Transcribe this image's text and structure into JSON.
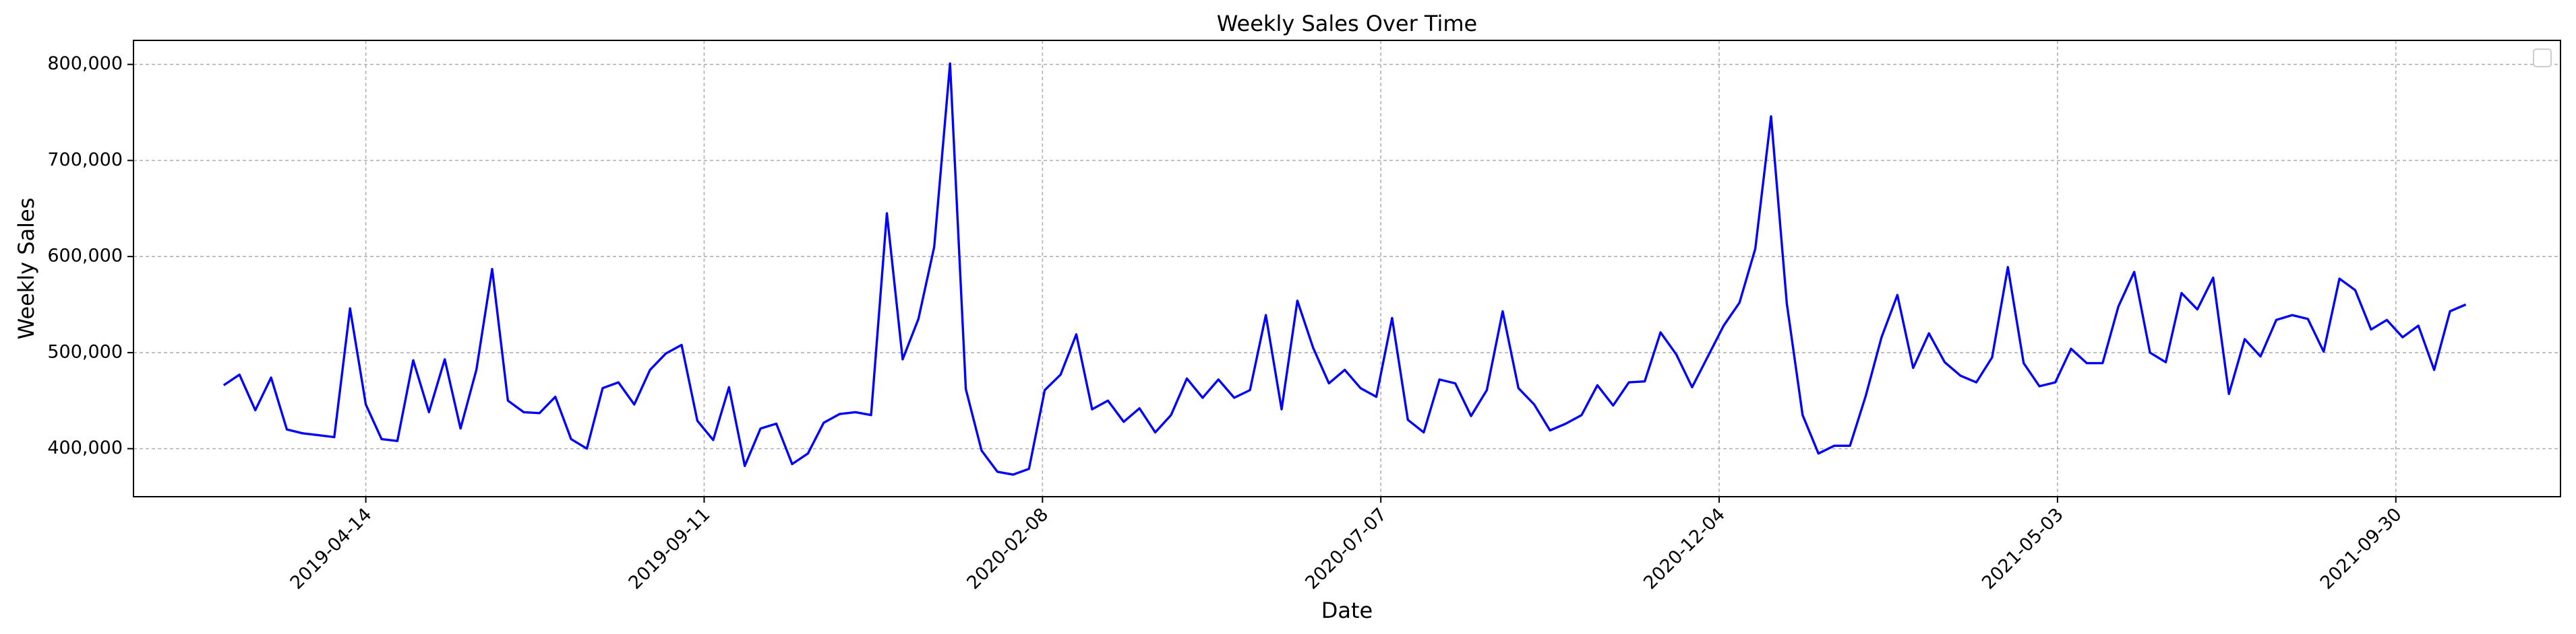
{
  "chart_data": {
    "type": "line",
    "title": "Weekly Sales Over Time",
    "xlabel": "Date",
    "ylabel": "Weekly Sales",
    "grid": true,
    "legend": "top-right, empty box",
    "series_color": "#0000ff",
    "xlim": [
      "2019-01-01",
      "2021-12-12"
    ],
    "ylim": [
      350000,
      825000
    ],
    "x_ticks": [
      "2019-04-14",
      "2019-09-11",
      "2020-02-08",
      "2020-07-07",
      "2020-12-04",
      "2021-05-03",
      "2021-09-30"
    ],
    "y_ticks": [
      400000,
      500000,
      600000,
      700000,
      800000
    ],
    "y_tick_labels": [
      "400,000",
      "500,000",
      "600,000",
      "700,000",
      "800,000"
    ],
    "series": [
      {
        "x": [
          "2019-02-10",
          "2019-02-17",
          "2019-02-24",
          "2019-03-03",
          "2019-03-10",
          "2019-03-17",
          "2019-03-24",
          "2019-03-31",
          "2019-04-07",
          "2019-04-14",
          "2019-04-21",
          "2019-04-28",
          "2019-05-05",
          "2019-05-12",
          "2019-05-19",
          "2019-05-26",
          "2019-06-02",
          "2019-06-09",
          "2019-06-16",
          "2019-06-23",
          "2019-06-30",
          "2019-07-07",
          "2019-07-14",
          "2019-07-21",
          "2019-07-28",
          "2019-08-04",
          "2019-08-11",
          "2019-08-18",
          "2019-08-25",
          "2019-09-01",
          "2019-09-08",
          "2019-09-15",
          "2019-09-22",
          "2019-09-29",
          "2019-10-06",
          "2019-10-13",
          "2019-10-20",
          "2019-10-27",
          "2019-11-03",
          "2019-11-10",
          "2019-11-17",
          "2019-11-24",
          "2019-12-01",
          "2019-12-08",
          "2019-12-15",
          "2019-12-22",
          "2019-12-29",
          "2020-01-05",
          "2020-01-12",
          "2020-01-19",
          "2020-01-26",
          "2020-02-02",
          "2020-02-09",
          "2020-02-16",
          "2020-02-23",
          "2020-03-01",
          "2020-03-08",
          "2020-03-15",
          "2020-03-22",
          "2020-03-29",
          "2020-04-05",
          "2020-04-12",
          "2020-04-19",
          "2020-04-26",
          "2020-05-03",
          "2020-05-10",
          "2020-05-17",
          "2020-05-24",
          "2020-05-31",
          "2020-06-07",
          "2020-06-14",
          "2020-06-21",
          "2020-06-28",
          "2020-07-05",
          "2020-07-12",
          "2020-07-19",
          "2020-07-26",
          "2020-08-02",
          "2020-08-09",
          "2020-08-16",
          "2020-08-23",
          "2020-08-30",
          "2020-09-06",
          "2020-09-13",
          "2020-09-20",
          "2020-09-27",
          "2020-10-04",
          "2020-10-11",
          "2020-10-18",
          "2020-10-25",
          "2020-11-01",
          "2020-11-08",
          "2020-11-15",
          "2020-11-22",
          "2020-11-29",
          "2020-12-06",
          "2020-12-13",
          "2020-12-20",
          "2020-12-27",
          "2021-01-03",
          "2021-01-10",
          "2021-01-17",
          "2021-01-24",
          "2021-01-31",
          "2021-02-07",
          "2021-02-14",
          "2021-02-21",
          "2021-02-28",
          "2021-03-07",
          "2021-03-14",
          "2021-03-21",
          "2021-03-28",
          "2021-04-04",
          "2021-04-11",
          "2021-04-18",
          "2021-04-25",
          "2021-05-02",
          "2021-05-09",
          "2021-05-16",
          "2021-05-23",
          "2021-05-30",
          "2021-06-06",
          "2021-06-13",
          "2021-06-20",
          "2021-06-27",
          "2021-07-04",
          "2021-07-11",
          "2021-07-18",
          "2021-07-25",
          "2021-08-01",
          "2021-08-08",
          "2021-08-15",
          "2021-08-22",
          "2021-08-29",
          "2021-09-05",
          "2021-09-12",
          "2021-09-19",
          "2021-09-26",
          "2021-10-03",
          "2021-10-10",
          "2021-10-17",
          "2021-10-24",
          "2021-10-31"
        ],
        "y": [
          466000,
          477000,
          440000,
          474000,
          420000,
          416000,
          414000,
          412000,
          546000,
          446000,
          410000,
          408000,
          492000,
          438000,
          493000,
          421000,
          482000,
          587000,
          450000,
          438000,
          437000,
          454000,
          410000,
          400000,
          463000,
          469000,
          446000,
          482000,
          499000,
          508000,
          429000,
          409000,
          464000,
          382000,
          421000,
          426000,
          384000,
          395000,
          427000,
          436000,
          438000,
          435000,
          645000,
          493000,
          535000,
          610000,
          801000,
          462000,
          398000,
          376000,
          373000,
          379000,
          461000,
          477000,
          519000,
          441000,
          450000,
          428000,
          442000,
          417000,
          435000,
          473000,
          453000,
          472000,
          453000,
          461000,
          539000,
          441000,
          554000,
          505000,
          468000,
          482000,
          463000,
          454000,
          536000,
          430000,
          417000,
          472000,
          468000,
          434000,
          461000,
          543000,
          463000,
          446000,
          419000,
          426000,
          435000,
          466000,
          445000,
          469000,
          470000,
          521000,
          498000,
          464000,
          496000,
          528000,
          552000,
          608000,
          746000,
          551000,
          435000,
          395000,
          403000,
          403000,
          455000,
          516000,
          560000,
          484000,
          520000,
          490000,
          476000,
          469000,
          495000,
          589000,
          489000,
          465000,
          469000,
          504000,
          489000,
          489000,
          548000,
          584000,
          500000,
          490000,
          562000,
          545000,
          578000,
          457000,
          514000,
          496000,
          534000,
          539000,
          535000,
          501000,
          577000,
          565000,
          524000,
          534000,
          516000,
          528000,
          482000,
          543000,
          550000
        ]
      }
    ]
  }
}
